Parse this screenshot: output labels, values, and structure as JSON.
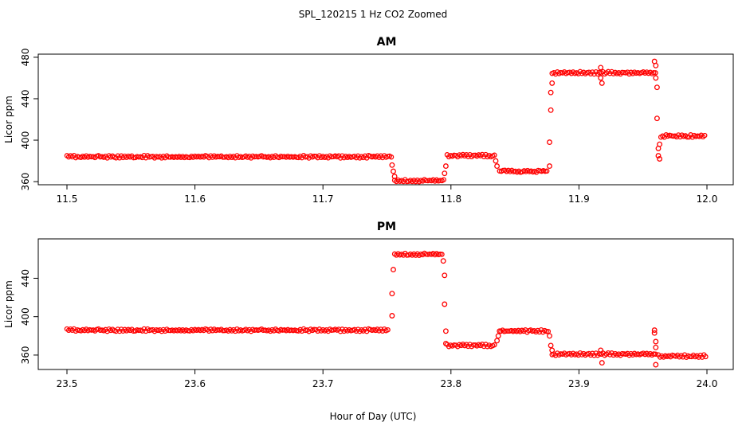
{
  "figure": {
    "suptitle": "SPL_120215  1 Hz CO2 Zoomed",
    "xlabel": "Hour of Day (UTC)",
    "marker_color": "#ff0000"
  },
  "chart_data": [
    {
      "type": "scatter",
      "title": "AM",
      "xlabel": "",
      "ylabel": "Licor ppm",
      "xlim": [
        11.5,
        12.0
      ],
      "ylim": [
        357,
        483
      ],
      "xticks": [
        "11.5",
        "11.6",
        "11.7",
        "11.8",
        "11.9",
        "12.0"
      ],
      "yticks": [
        "360",
        "400",
        "440",
        "480"
      ],
      "marker": "open-circle",
      "color": "#ff0000",
      "segments": [
        {
          "x": [
            11.5,
            11.754
          ],
          "y": 384
        },
        {
          "x": [
            11.756,
            11.795
          ],
          "y": 361
        },
        {
          "x": [
            11.797,
            11.834
          ],
          "y": 385
        },
        {
          "x": [
            11.838,
            11.876
          ],
          "y": 370
        },
        {
          "x": [
            11.879,
            11.96
          ],
          "y": 465
        },
        {
          "x": [
            11.964,
            11.999
          ],
          "y": 404
        }
      ],
      "points": [
        {
          "x": 11.754,
          "y": 376
        },
        {
          "x": 11.755,
          "y": 370
        },
        {
          "x": 11.756,
          "y": 365
        },
        {
          "x": 11.795,
          "y": 368
        },
        {
          "x": 11.796,
          "y": 375
        },
        {
          "x": 11.835,
          "y": 380
        },
        {
          "x": 11.836,
          "y": 375
        },
        {
          "x": 11.877,
          "y": 375
        },
        {
          "x": 11.877,
          "y": 398
        },
        {
          "x": 11.878,
          "y": 429
        },
        {
          "x": 11.878,
          "y": 446
        },
        {
          "x": 11.879,
          "y": 455
        },
        {
          "x": 11.917,
          "y": 470
        },
        {
          "x": 11.917,
          "y": 460
        },
        {
          "x": 11.918,
          "y": 455
        },
        {
          "x": 11.959,
          "y": 476
        },
        {
          "x": 11.96,
          "y": 472
        },
        {
          "x": 11.96,
          "y": 460
        },
        {
          "x": 11.961,
          "y": 451
        },
        {
          "x": 11.961,
          "y": 421
        },
        {
          "x": 11.962,
          "y": 392
        },
        {
          "x": 11.962,
          "y": 385
        },
        {
          "x": 11.963,
          "y": 382
        },
        {
          "x": 11.963,
          "y": 396
        }
      ]
    },
    {
      "type": "scatter",
      "title": "PM",
      "xlabel": "",
      "ylabel": "Licor ppm",
      "xlim": [
        23.5,
        24.0
      ],
      "ylim": [
        345,
        481
      ],
      "xticks": [
        "23.5",
        "23.6",
        "23.7",
        "23.8",
        "23.9",
        "24.0"
      ],
      "yticks": [
        "360",
        "400",
        "440"
      ],
      "marker": "open-circle",
      "color": "#ff0000",
      "segments": [
        {
          "x": [
            23.5,
            23.752
          ],
          "y": 386
        },
        {
          "x": [
            23.756,
            23.794
          ],
          "y": 465
        },
        {
          "x": [
            23.797,
            23.834
          ],
          "y": 370
        },
        {
          "x": [
            23.839,
            23.876
          ],
          "y": 385
        },
        {
          "x": [
            23.879,
            23.96
          ],
          "y": 361
        },
        {
          "x": [
            23.962,
            23.999
          ],
          "y": 359
        }
      ],
      "points": [
        {
          "x": 23.754,
          "y": 401
        },
        {
          "x": 23.754,
          "y": 424
        },
        {
          "x": 23.755,
          "y": 449
        },
        {
          "x": 23.794,
          "y": 458
        },
        {
          "x": 23.795,
          "y": 443
        },
        {
          "x": 23.795,
          "y": 413
        },
        {
          "x": 23.796,
          "y": 385
        },
        {
          "x": 23.796,
          "y": 372
        },
        {
          "x": 23.836,
          "y": 375
        },
        {
          "x": 23.837,
          "y": 380
        },
        {
          "x": 23.838,
          "y": 385
        },
        {
          "x": 23.877,
          "y": 380
        },
        {
          "x": 23.878,
          "y": 370
        },
        {
          "x": 23.879,
          "y": 365
        },
        {
          "x": 23.917,
          "y": 365
        },
        {
          "x": 23.918,
          "y": 352
        },
        {
          "x": 23.959,
          "y": 386
        },
        {
          "x": 23.959,
          "y": 383
        },
        {
          "x": 23.96,
          "y": 374
        },
        {
          "x": 23.96,
          "y": 368
        },
        {
          "x": 23.96,
          "y": 350
        }
      ]
    }
  ]
}
